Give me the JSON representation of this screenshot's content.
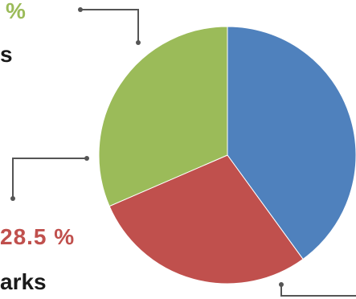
{
  "chart_data": {
    "type": "pie",
    "start_angle_deg": 0,
    "slices": [
      {
        "label": "",
        "value": 40,
        "color": "#4f81bd"
      },
      {
        "label": "arks",
        "value": 28.5,
        "value_label": "28.5 %",
        "color": "#c0504d"
      },
      {
        "label": "s",
        "value": 31.5,
        "value_label": "%",
        "color": "#9bbb59"
      }
    ],
    "annotations": {
      "green_value_text": "%",
      "green_name_text": "s",
      "red_value_text": "28.5 %",
      "red_name_text": "arks"
    }
  }
}
